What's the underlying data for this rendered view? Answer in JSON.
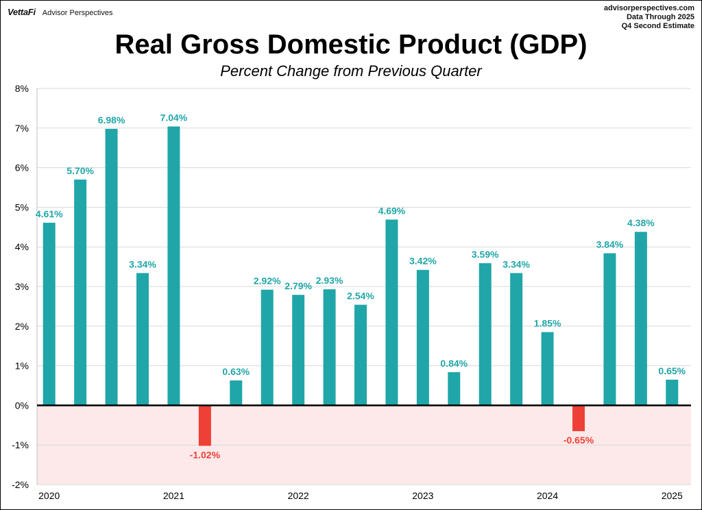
{
  "header": {
    "brand_logo": "VettaFi",
    "brand_name": "Advisor Perspectives",
    "source_lines": [
      "advisorperspectives.com",
      "Data Through 2025",
      "Q4 Second Estimate"
    ]
  },
  "chart_data": {
    "type": "bar",
    "title": "Real Gross Domestic Product (GDP)",
    "subtitle": "Percent Change from Previous Quarter",
    "xlabel": "",
    "ylabel": "",
    "ylim": [
      -2,
      8
    ],
    "yticks": [
      "-2%",
      "-1%",
      "0%",
      "1%",
      "2%",
      "3%",
      "4%",
      "5%",
      "6%",
      "7%",
      "8%"
    ],
    "ytick_values": [
      -2,
      -1,
      0,
      1,
      2,
      3,
      4,
      5,
      6,
      7,
      8
    ],
    "xtick_labels": [
      {
        "label": "2020",
        "index": 0
      },
      {
        "label": "2021",
        "index": 4
      },
      {
        "label": "2022",
        "index": 8
      },
      {
        "label": "2023",
        "index": 12
      },
      {
        "label": "2024",
        "index": 16
      },
      {
        "label": "2025",
        "index": 20
      }
    ],
    "values": [
      4.61,
      5.7,
      6.98,
      3.34,
      7.04,
      -1.02,
      0.63,
      2.92,
      2.79,
      2.93,
      2.54,
      4.69,
      3.42,
      0.84,
      3.59,
      3.34,
      1.85,
      -0.65,
      3.84,
      4.38,
      0.65
    ],
    "data_labels": [
      "4.61%",
      "5.70%",
      "6.98%",
      "3.34%",
      "7.04%",
      "-1.02%",
      "0.63%",
      "2.92%",
      "2.79%",
      "2.93%",
      "2.54%",
      "4.69%",
      "3.42%",
      "0.84%",
      "3.59%",
      "3.34%",
      "1.85%",
      "-0.65%",
      "3.84%",
      "4.38%",
      "0.65%"
    ],
    "grid": true,
    "colors": {
      "positive": "#20A6A8",
      "negative": "#EE4036",
      "negative_region": "#FDE9E9",
      "grid": "#D9D9D9",
      "zero_line": "#000000"
    }
  }
}
